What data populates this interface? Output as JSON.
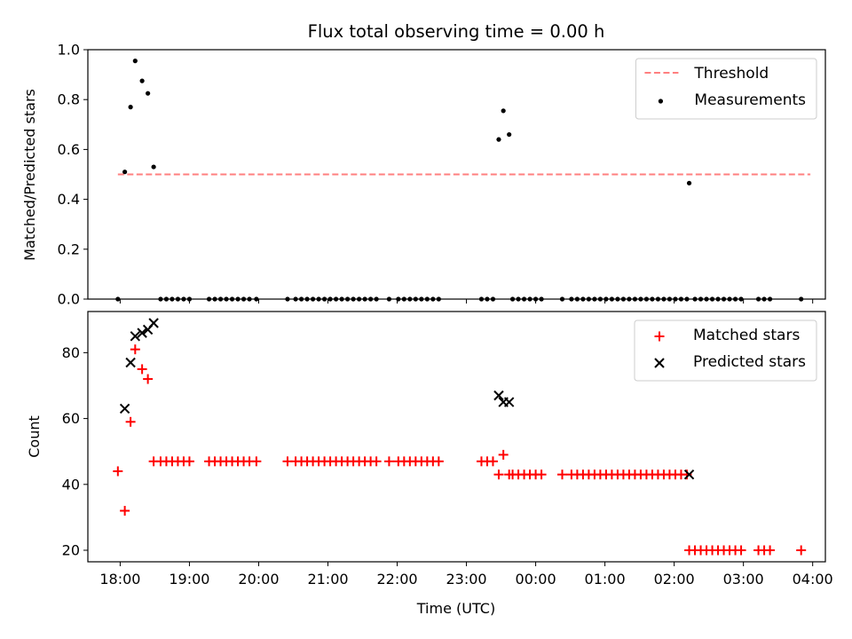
{
  "title": "Flux total observing time = 0.00 h",
  "chart_data": [
    {
      "type": "scatter",
      "ylabel": "Matched/Predicted stars",
      "xlabel": "",
      "xlim": [
        "17:32",
        "04:11"
      ],
      "ylim": [
        0,
        1
      ],
      "yticks": [
        0,
        0.2,
        0.4,
        0.6,
        0.8,
        1.0
      ],
      "ytick_labels": [
        "0.0",
        "0.2",
        "0.4",
        "0.6",
        "0.8",
        "1.0"
      ],
      "legend": "top-right",
      "threshold": {
        "name": "Threshold",
        "value": 0.5,
        "x_range": [
          "17:58",
          "03:58"
        ],
        "color": "#ff7f7f",
        "style": "dashed"
      },
      "series": [
        {
          "name": "Measurements",
          "color": "#000000",
          "marker": "dot",
          "points": [
            [
              "17:58",
              0
            ],
            [
              "18:04",
              0.51
            ],
            [
              "18:09",
              0.77
            ],
            [
              "18:13",
              0.955
            ],
            [
              "18:19",
              0.875
            ],
            [
              "18:24",
              0.825
            ],
            [
              "18:29",
              0.53
            ],
            [
              "18:35",
              0
            ],
            [
              "18:40",
              0
            ],
            [
              "18:45",
              0
            ],
            [
              "18:50",
              0
            ],
            [
              "18:55",
              0
            ],
            [
              "19:00",
              0
            ],
            [
              "19:17",
              0
            ],
            [
              "19:22",
              0
            ],
            [
              "19:27",
              0
            ],
            [
              "19:32",
              0
            ],
            [
              "19:37",
              0
            ],
            [
              "19:42",
              0
            ],
            [
              "19:47",
              0
            ],
            [
              "19:52",
              0
            ],
            [
              "19:58",
              0
            ],
            [
              "20:25",
              0
            ],
            [
              "20:32",
              0
            ],
            [
              "20:37",
              0
            ],
            [
              "20:42",
              0
            ],
            [
              "20:47",
              0
            ],
            [
              "20:52",
              0
            ],
            [
              "20:57",
              0
            ],
            [
              "21:02",
              0
            ],
            [
              "21:07",
              0
            ],
            [
              "21:12",
              0
            ],
            [
              "21:17",
              0
            ],
            [
              "21:22",
              0
            ],
            [
              "21:27",
              0
            ],
            [
              "21:32",
              0
            ],
            [
              "21:37",
              0
            ],
            [
              "21:42",
              0
            ],
            [
              "21:53",
              0
            ],
            [
              "22:01",
              0
            ],
            [
              "22:06",
              0
            ],
            [
              "22:11",
              0
            ],
            [
              "22:16",
              0
            ],
            [
              "22:21",
              0
            ],
            [
              "22:26",
              0
            ],
            [
              "22:31",
              0
            ],
            [
              "22:36",
              0
            ],
            [
              "23:13",
              0
            ],
            [
              "23:18",
              0
            ],
            [
              "23:23",
              0
            ],
            [
              "23:28",
              0.64
            ],
            [
              "23:32",
              0.755
            ],
            [
              "23:37",
              0.66
            ],
            [
              "23:40",
              0
            ],
            [
              "23:45",
              0
            ],
            [
              "23:50",
              0
            ],
            [
              "23:55",
              0
            ],
            [
              "00:00",
              0
            ],
            [
              "00:05",
              0
            ],
            [
              "00:23",
              0
            ],
            [
              "00:31",
              0
            ],
            [
              "00:36",
              0
            ],
            [
              "00:41",
              0
            ],
            [
              "00:46",
              0
            ],
            [
              "00:51",
              0
            ],
            [
              "00:56",
              0
            ],
            [
              "01:01",
              0
            ],
            [
              "01:06",
              0
            ],
            [
              "01:11",
              0
            ],
            [
              "01:16",
              0
            ],
            [
              "01:21",
              0
            ],
            [
              "01:26",
              0
            ],
            [
              "01:31",
              0
            ],
            [
              "01:36",
              0
            ],
            [
              "01:41",
              0
            ],
            [
              "01:46",
              0
            ],
            [
              "01:51",
              0
            ],
            [
              "01:56",
              0
            ],
            [
              "02:01",
              0
            ],
            [
              "02:06",
              0
            ],
            [
              "02:11",
              0
            ],
            [
              "02:13",
              0.465
            ],
            [
              "02:18",
              0
            ],
            [
              "02:23",
              0
            ],
            [
              "02:28",
              0
            ],
            [
              "02:33",
              0
            ],
            [
              "02:38",
              0
            ],
            [
              "02:43",
              0
            ],
            [
              "02:48",
              0
            ],
            [
              "02:53",
              0
            ],
            [
              "02:58",
              0
            ],
            [
              "03:13",
              0
            ],
            [
              "03:18",
              0
            ],
            [
              "03:23",
              0
            ],
            [
              "03:50",
              0
            ]
          ]
        }
      ]
    },
    {
      "type": "scatter",
      "ylabel": "Count",
      "xlabel": "Time (UTC)",
      "xlim": [
        "17:32",
        "04:11"
      ],
      "ylim": [
        16.5,
        92.5
      ],
      "yticks": [
        20,
        40,
        60,
        80
      ],
      "ytick_labels": [
        "20",
        "40",
        "60",
        "80"
      ],
      "xticks": [
        "18:00",
        "19:00",
        "20:00",
        "21:00",
        "22:00",
        "23:00",
        "00:00",
        "01:00",
        "02:00",
        "03:00",
        "04:00"
      ],
      "legend": "top-right",
      "series": [
        {
          "name": "Matched stars",
          "color": "#ff0000",
          "marker": "plus",
          "points": [
            [
              "17:58",
              44
            ],
            [
              "18:04",
              32
            ],
            [
              "18:09",
              59
            ],
            [
              "18:13",
              81
            ],
            [
              "18:19",
              75
            ],
            [
              "18:24",
              72
            ],
            [
              "18:29",
              47
            ],
            [
              "18:35",
              47
            ],
            [
              "18:40",
              47
            ],
            [
              "18:45",
              47
            ],
            [
              "18:50",
              47
            ],
            [
              "18:55",
              47
            ],
            [
              "19:00",
              47
            ],
            [
              "19:17",
              47
            ],
            [
              "19:22",
              47
            ],
            [
              "19:27",
              47
            ],
            [
              "19:32",
              47
            ],
            [
              "19:37",
              47
            ],
            [
              "19:42",
              47
            ],
            [
              "19:47",
              47
            ],
            [
              "19:52",
              47
            ],
            [
              "19:58",
              47
            ],
            [
              "20:25",
              47
            ],
            [
              "20:32",
              47
            ],
            [
              "20:37",
              47
            ],
            [
              "20:42",
              47
            ],
            [
              "20:47",
              47
            ],
            [
              "20:52",
              47
            ],
            [
              "20:57",
              47
            ],
            [
              "21:02",
              47
            ],
            [
              "21:07",
              47
            ],
            [
              "21:12",
              47
            ],
            [
              "21:17",
              47
            ],
            [
              "21:22",
              47
            ],
            [
              "21:27",
              47
            ],
            [
              "21:32",
              47
            ],
            [
              "21:37",
              47
            ],
            [
              "21:42",
              47
            ],
            [
              "21:53",
              47
            ],
            [
              "22:01",
              47
            ],
            [
              "22:06",
              47
            ],
            [
              "22:11",
              47
            ],
            [
              "22:16",
              47
            ],
            [
              "22:21",
              47
            ],
            [
              "22:26",
              47
            ],
            [
              "22:31",
              47
            ],
            [
              "22:36",
              47
            ],
            [
              "23:13",
              47
            ],
            [
              "23:18",
              47
            ],
            [
              "23:23",
              47
            ],
            [
              "23:28",
              43
            ],
            [
              "23:32",
              49
            ],
            [
              "23:37",
              43
            ],
            [
              "23:40",
              43
            ],
            [
              "23:45",
              43
            ],
            [
              "23:50",
              43
            ],
            [
              "23:55",
              43
            ],
            [
              "00:00",
              43
            ],
            [
              "00:05",
              43
            ],
            [
              "00:23",
              43
            ],
            [
              "00:31",
              43
            ],
            [
              "00:36",
              43
            ],
            [
              "00:41",
              43
            ],
            [
              "00:46",
              43
            ],
            [
              "00:51",
              43
            ],
            [
              "00:56",
              43
            ],
            [
              "01:01",
              43
            ],
            [
              "01:06",
              43
            ],
            [
              "01:11",
              43
            ],
            [
              "01:16",
              43
            ],
            [
              "01:21",
              43
            ],
            [
              "01:26",
              43
            ],
            [
              "01:31",
              43
            ],
            [
              "01:36",
              43
            ],
            [
              "01:41",
              43
            ],
            [
              "01:46",
              43
            ],
            [
              "01:51",
              43
            ],
            [
              "01:56",
              43
            ],
            [
              "02:01",
              43
            ],
            [
              "02:06",
              43
            ],
            [
              "02:11",
              43
            ],
            [
              "02:13",
              20
            ],
            [
              "02:18",
              20
            ],
            [
              "02:23",
              20
            ],
            [
              "02:28",
              20
            ],
            [
              "02:33",
              20
            ],
            [
              "02:38",
              20
            ],
            [
              "02:43",
              20
            ],
            [
              "02:48",
              20
            ],
            [
              "02:53",
              20
            ],
            [
              "02:58",
              20
            ],
            [
              "03:13",
              20
            ],
            [
              "03:18",
              20
            ],
            [
              "03:23",
              20
            ],
            [
              "03:50",
              20
            ]
          ]
        },
        {
          "name": "Predicted stars",
          "color": "#000000",
          "marker": "x",
          "points": [
            [
              "18:04",
              63
            ],
            [
              "18:09",
              77
            ],
            [
              "18:13",
              85
            ],
            [
              "18:19",
              86
            ],
            [
              "18:24",
              87
            ],
            [
              "18:29",
              89
            ],
            [
              "23:28",
              67
            ],
            [
              "23:32",
              65
            ],
            [
              "23:37",
              65
            ],
            [
              "02:13",
              43
            ]
          ]
        }
      ]
    }
  ]
}
